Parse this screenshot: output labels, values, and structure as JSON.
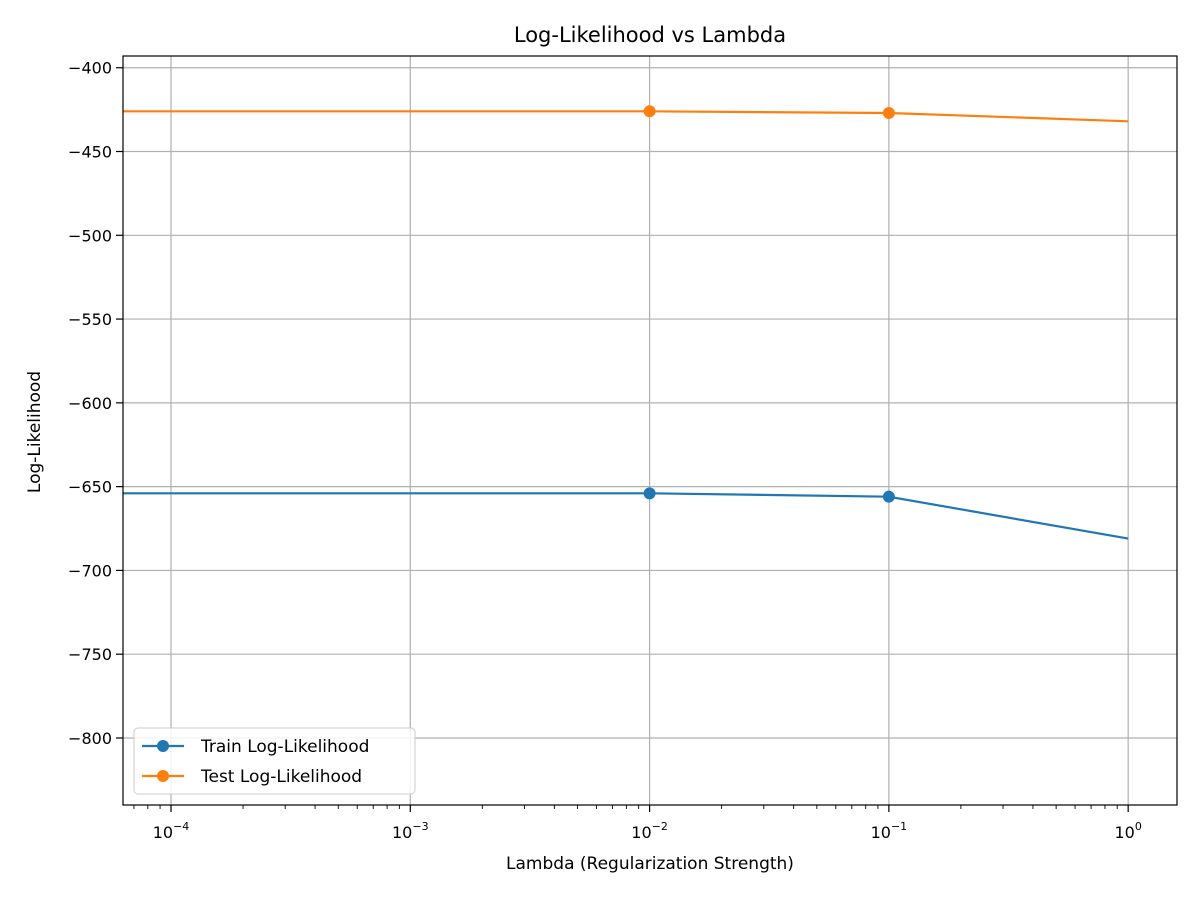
{
  "chart_data": {
    "type": "line",
    "title": "Log-Likelihood vs Lambda",
    "xlabel": "Lambda (Regularization Strength)",
    "ylabel": "Log-Likelihood",
    "x_scale": "log",
    "xlim": [
      6.3e-05,
      1.6
    ],
    "ylim": [
      -840,
      -393
    ],
    "x_ticks": [
      {
        "value": 0.0001,
        "base": "10",
        "exp": "−4"
      },
      {
        "value": 0.001,
        "base": "10",
        "exp": "−3"
      },
      {
        "value": 0.01,
        "base": "10",
        "exp": "−2"
      },
      {
        "value": 0.1,
        "base": "10",
        "exp": "−1"
      },
      {
        "value": 1,
        "base": "10",
        "exp": "0"
      }
    ],
    "y_ticks": [
      {
        "value": -400,
        "label": "−400"
      },
      {
        "value": -450,
        "label": "−450"
      },
      {
        "value": -500,
        "label": "−500"
      },
      {
        "value": -550,
        "label": "−550"
      },
      {
        "value": -600,
        "label": "−600"
      },
      {
        "value": -650,
        "label": "−650"
      },
      {
        "value": -700,
        "label": "−700"
      },
      {
        "value": -750,
        "label": "−750"
      },
      {
        "value": -800,
        "label": "−800"
      }
    ],
    "grid": true,
    "legend_position": "lower-left",
    "series": [
      {
        "name": "Train Log-Likelihood",
        "color": "#1f77b4",
        "x": [
          0,
          0.01,
          0.1,
          1
        ],
        "y": [
          -654,
          -654,
          -656,
          -681
        ],
        "markers_at": [
          0.01,
          0.1
        ]
      },
      {
        "name": "Test Log-Likelihood",
        "color": "#ff7f0e",
        "x": [
          0,
          0.01,
          0.1,
          1
        ],
        "y": [
          -426,
          -426,
          -427,
          -432
        ],
        "markers_at": [
          0.01,
          0.1
        ]
      }
    ]
  }
}
